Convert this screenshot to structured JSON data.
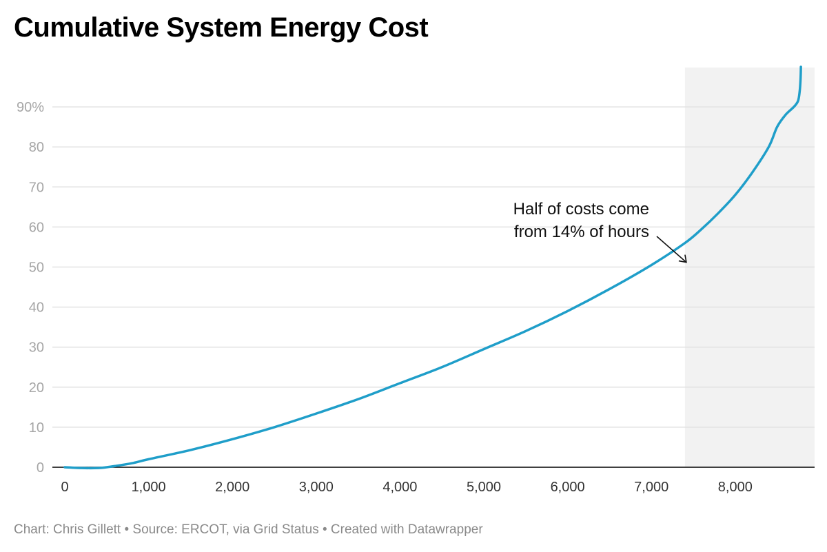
{
  "chart_data": {
    "type": "line",
    "title": "Cumulative System Energy Cost",
    "xlabel": "",
    "ylabel": "",
    "xlim": [
      0,
      8784
    ],
    "ylim": [
      0,
      100
    ],
    "x_ticks": [
      0,
      1000,
      2000,
      3000,
      4000,
      5000,
      6000,
      7000,
      8000
    ],
    "x_tick_labels": [
      "0",
      "1,000",
      "2,000",
      "3,000",
      "4,000",
      "5,000",
      "6,000",
      "7,000",
      "8,000"
    ],
    "y_ticks": [
      0,
      10,
      20,
      30,
      40,
      50,
      60,
      70,
      80,
      90
    ],
    "y_tick_labels": [
      "0",
      "10",
      "20",
      "30",
      "40",
      "50",
      "60",
      "70",
      "80",
      "90%"
    ],
    "grid": "horizontal",
    "highlight_range": {
      "x": [
        7400,
        8784
      ],
      "color": "#f2f2f2"
    },
    "series": [
      {
        "color": "#1f9ec9",
        "x": [
          0,
          200,
          400,
          500,
          600,
          800,
          1000,
          1500,
          2000,
          2500,
          3000,
          3500,
          4000,
          4500,
          5000,
          5500,
          6000,
          6500,
          7000,
          7400,
          7600,
          7800,
          8000,
          8200,
          8400,
          8500,
          8600,
          8700,
          8750,
          8770,
          8780,
          8784
        ],
        "y": [
          0,
          -0.2,
          -0.2,
          0,
          0.3,
          1.0,
          2.0,
          4.3,
          7.0,
          10.0,
          13.4,
          17.0,
          21.0,
          25.0,
          29.5,
          34.0,
          39.0,
          44.5,
          50.5,
          56.0,
          59.5,
          63.5,
          68.0,
          73.5,
          80.0,
          85.0,
          88.0,
          90.0,
          91.5,
          94.0,
          97.0,
          100.0
        ]
      }
    ],
    "annotations": [
      {
        "lines": [
          "Half of costs come",
          "from 14% of hours"
        ],
        "x": 7450,
        "y": 50.5
      }
    ]
  },
  "footer": "Chart: Chris Gillett • Source: ERCOT, via Grid Status • Created with Datawrapper",
  "colors": {
    "line": "#1f9ec9",
    "grid": "#e2e2e2",
    "axis": "#000000",
    "shade": "#f2f2f2"
  }
}
